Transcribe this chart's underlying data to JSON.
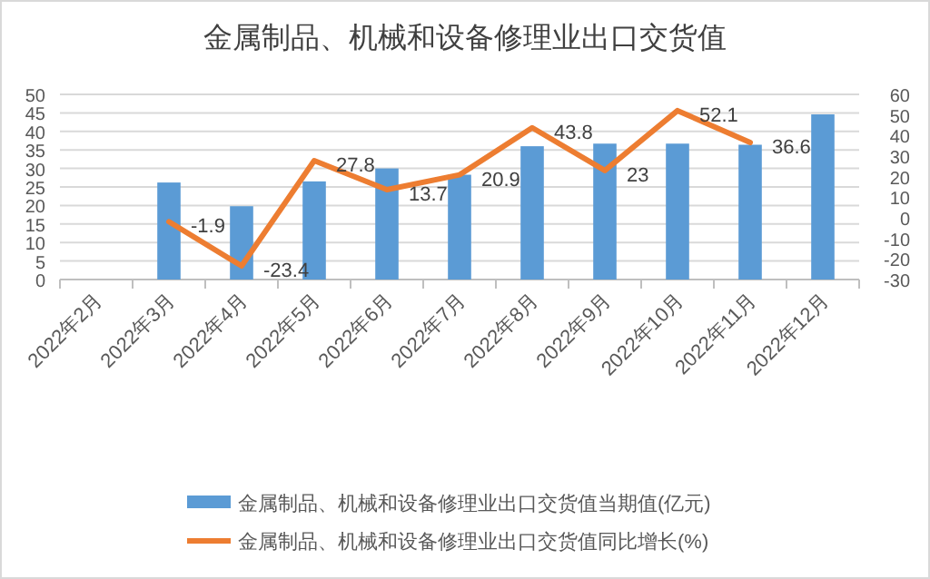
{
  "chart_data": {
    "type": "bar",
    "title": "金属制品、机械和设备修理业出口交货值",
    "categories": [
      "2022年2月",
      "2022年3月",
      "2022年4月",
      "2022年5月",
      "2022年6月",
      "2022年7月",
      "2022年8月",
      "2022年9月",
      "2022年10月",
      "2022年11月",
      "2022年12月"
    ],
    "series": [
      {
        "name": "金属制品、机械和设备修理业出口交货值当期值(亿元)",
        "color": "#5b9bd5",
        "values": [
          null,
          26.2,
          19.8,
          26.5,
          30.0,
          28.3,
          36.0,
          36.7,
          36.7,
          36.4,
          44.6
        ]
      },
      {
        "name": "金属制品、机械和设备修理业出口交货值同比增长(%)",
        "type": "line",
        "axis": "y2",
        "color": "#ed7d31",
        "values": [
          null,
          -1.9,
          -23.4,
          27.8,
          13.7,
          20.9,
          43.8,
          23,
          52.1,
          36.6,
          null
        ],
        "value_labels": [
          null,
          "-1.9",
          "-23.4",
          "27.8",
          "13.7",
          "20.9",
          "43.8",
          "23",
          "52.1",
          "36.6",
          null
        ]
      }
    ],
    "ylim": [
      0,
      50
    ],
    "yticks": [
      0,
      5,
      10,
      15,
      20,
      25,
      30,
      35,
      40,
      45,
      50
    ],
    "y2lim": [
      -30,
      60
    ],
    "y2ticks": [
      -30,
      -20,
      -10,
      0,
      10,
      20,
      30,
      40,
      50,
      60
    ],
    "grid": "y",
    "legend": "bottom",
    "marker": "none"
  }
}
